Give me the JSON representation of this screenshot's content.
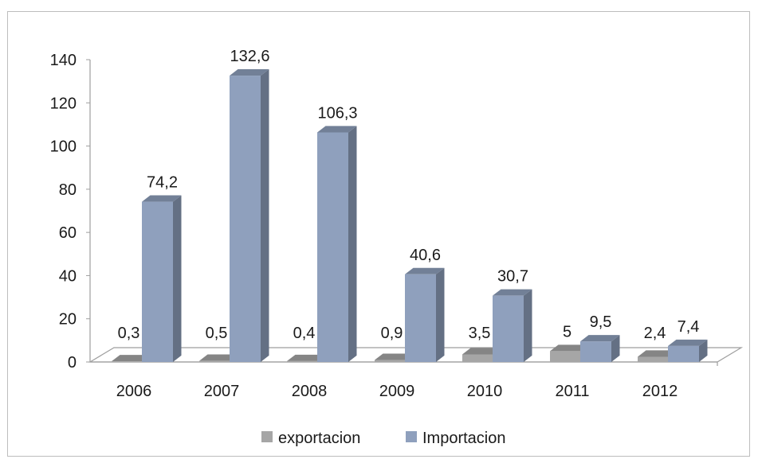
{
  "chart_data": {
    "type": "bar",
    "style": "3d-column",
    "categories": [
      "2006",
      "2007",
      "2008",
      "2009",
      "2010",
      "2011",
      "2012"
    ],
    "series": [
      {
        "name": "exportacion",
        "values": [
          0.3,
          0.5,
          0.4,
          0.9,
          3.5,
          5,
          2.4
        ],
        "labels": [
          "0,3",
          "0,5",
          "0,4",
          "0,9",
          "3,5",
          "5",
          "2,4"
        ],
        "color": "#a6a6a6"
      },
      {
        "name": "Importacion",
        "values": [
          74.2,
          132.6,
          106.3,
          40.6,
          30.7,
          9.5,
          7.4
        ],
        "labels": [
          "74,2",
          "132,6",
          "106,3",
          "40,6",
          "30,7",
          "9,5",
          "7,4"
        ],
        "color": "#8fa0bd"
      }
    ],
    "y_ticks": [
      "0",
      "20",
      "40",
      "60",
      "80",
      "100",
      "120",
      "140"
    ],
    "ylim": [
      0,
      140
    ],
    "grid": false,
    "legend_position": "bottom"
  }
}
